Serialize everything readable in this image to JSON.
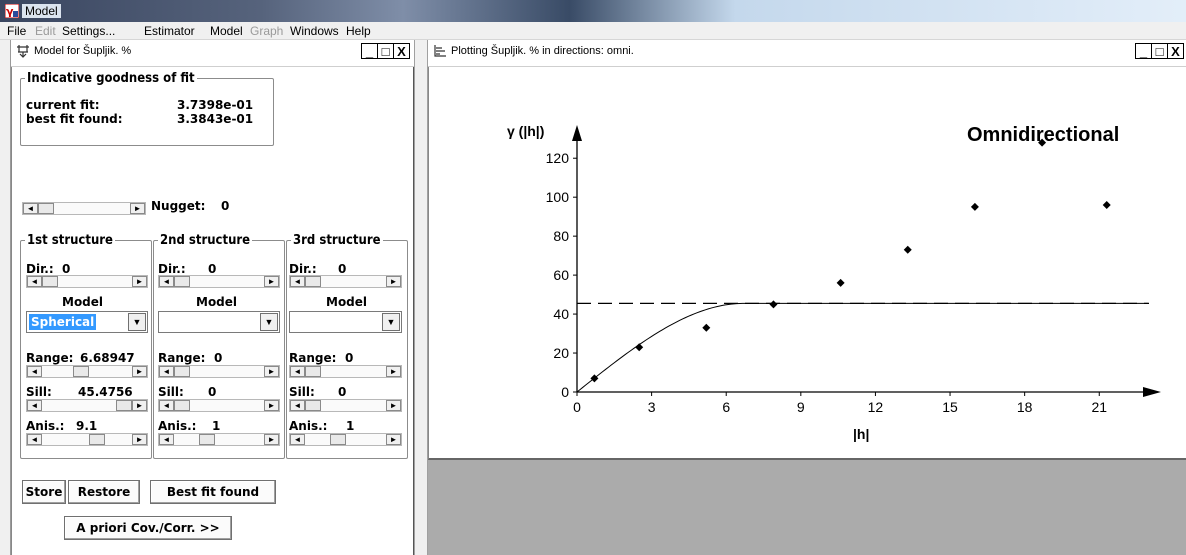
{
  "app": {
    "title": "Model",
    "icon": "variogram-app-icon"
  },
  "menu": [
    {
      "label": "File",
      "enabled": true
    },
    {
      "label": "Edit",
      "enabled": false
    },
    {
      "label": "Settings...",
      "enabled": true
    },
    {
      "label": "Estimator",
      "enabled": true
    },
    {
      "label": "Model",
      "enabled": true
    },
    {
      "label": "Graph",
      "enabled": false
    },
    {
      "label": "Windows",
      "enabled": true
    },
    {
      "label": "Help",
      "enabled": true
    }
  ],
  "model_window": {
    "title": "Model for Šupljik. %",
    "btn_min": "_",
    "btn_max": "□",
    "btn_close": "X",
    "goodness": {
      "legend": "Indicative goodness of fit",
      "current_label": "current fit:",
      "current_value": "3.7398e-01",
      "best_label": "best fit found:",
      "best_value": "3.3843e-01"
    },
    "nugget": {
      "label": "Nugget:",
      "value": "0"
    },
    "structures": [
      {
        "legend": "1st structure",
        "dir_label": "Dir.:",
        "dir_value": "0",
        "model_label": "Model",
        "model_value": "Spherical",
        "range_label": "Range:",
        "range_value": "6.68947",
        "sill_label": "Sill:",
        "sill_value": "45.4756",
        "anis_label": "Anis.:",
        "anis_value": "9.1"
      },
      {
        "legend": "2nd structure",
        "dir_label": "Dir.:",
        "dir_value": "0",
        "model_label": "Model",
        "model_value": "",
        "range_label": "Range:",
        "range_value": "0",
        "sill_label": "Sill:",
        "sill_value": "0",
        "anis_label": "Anis.:",
        "anis_value": "1"
      },
      {
        "legend": "3rd structure",
        "dir_label": "Dir.:",
        "dir_value": "0",
        "model_label": "Model",
        "model_value": "",
        "range_label": "Range:",
        "range_value": "0",
        "sill_label": "Sill:",
        "sill_value": "0",
        "anis_label": "Anis.:",
        "anis_value": "1"
      }
    ],
    "buttons": {
      "store": "Store",
      "restore": "Restore",
      "best_fit": "Best fit found",
      "a_priori": "A priori Cov./Corr. >>"
    }
  },
  "plot_window": {
    "title": "Plotting Šupljik. % in directions: omni.",
    "btn_min": "_",
    "btn_max": "□",
    "btn_close": "X"
  },
  "chart_data": {
    "type": "scatter",
    "title": "Omnidirectional",
    "xlabel": "|h|",
    "ylabel": "γ (|h|)",
    "xlim": [
      0,
      23
    ],
    "ylim": [
      0,
      135
    ],
    "xticks": [
      0,
      3,
      6,
      9,
      12,
      15,
      18,
      21
    ],
    "yticks": [
      0,
      20,
      40,
      60,
      80,
      100,
      120
    ],
    "sill_line": 45.5,
    "points": [
      {
        "x": 0.7,
        "y": 7
      },
      {
        "x": 2.5,
        "y": 23
      },
      {
        "x": 5.2,
        "y": 33
      },
      {
        "x": 7.9,
        "y": 45
      },
      {
        "x": 10.6,
        "y": 56
      },
      {
        "x": 13.3,
        "y": 73
      },
      {
        "x": 16.0,
        "y": 95
      },
      {
        "x": 18.7,
        "y": 128
      },
      {
        "x": 21.3,
        "y": 96
      }
    ],
    "model": {
      "type": "spherical",
      "nugget": 0,
      "sill": 45.4756,
      "range": 6.68947
    }
  }
}
